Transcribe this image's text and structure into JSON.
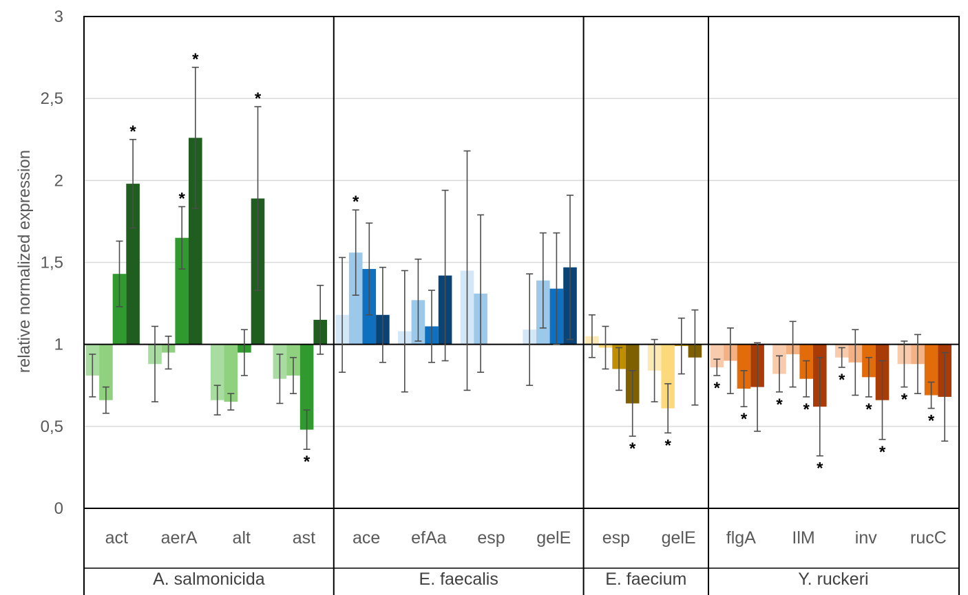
{
  "chart_data": {
    "type": "bar",
    "title": "",
    "ylabel": "relative normalized expression",
    "xlabel": "",
    "ylim": [
      0,
      3
    ],
    "yticks": [
      {
        "v": 0,
        "label": "0"
      },
      {
        "v": 0.5,
        "label": "0,5"
      },
      {
        "v": 1,
        "label": "1"
      },
      {
        "v": 1.5,
        "label": "1,5"
      },
      {
        "v": 2,
        "label": "2"
      },
      {
        "v": 2.5,
        "label": "2,5"
      },
      {
        "v": 3,
        "label": "3"
      }
    ],
    "baseline": 1,
    "grid": true,
    "groups": [
      {
        "name": "A. salmonicida",
        "colors": [
          "#a9dca0",
          "#8fd17f",
          "#309a2e",
          "#1f5e1f"
        ],
        "genes": [
          {
            "name": "act",
            "bars": [
              {
                "value": 0.81,
                "err": 0.13,
                "star": false
              },
              {
                "value": 0.66,
                "err": 0.08,
                "star": false
              },
              {
                "value": 1.43,
                "err": 0.2,
                "star": false
              },
              {
                "value": 1.98,
                "err": 0.27,
                "star": true
              }
            ]
          },
          {
            "name": "aerA",
            "bars": [
              {
                "value": 0.88,
                "err": 0.23,
                "star": false
              },
              {
                "value": 0.95,
                "err": 0.1,
                "star": false
              },
              {
                "value": 1.65,
                "err": 0.19,
                "star": true
              },
              {
                "value": 2.26,
                "err": 0.43,
                "star": true
              }
            ]
          },
          {
            "name": "alt",
            "bars": [
              {
                "value": 0.66,
                "err": 0.09,
                "star": false
              },
              {
                "value": 0.65,
                "err": 0.05,
                "star": false
              },
              {
                "value": 0.95,
                "err": 0.14,
                "star": false
              },
              {
                "value": 1.89,
                "err": 0.56,
                "star": true
              }
            ]
          },
          {
            "name": "ast",
            "bars": [
              {
                "value": 0.79,
                "err": 0.15,
                "star": false
              },
              {
                "value": 0.81,
                "err": 0.11,
                "star": false
              },
              {
                "value": 0.48,
                "err": 0.12,
                "star": true
              },
              {
                "value": 1.15,
                "err": 0.21,
                "star": false
              }
            ]
          }
        ]
      },
      {
        "name": "E. faecalis",
        "colors": [
          "#d3e7f7",
          "#9cc8ea",
          "#0f70bf",
          "#0a4477"
        ],
        "genes": [
          {
            "name": "ace",
            "bars": [
              {
                "value": 1.18,
                "err": 0.35,
                "star": false
              },
              {
                "value": 1.56,
                "err": 0.26,
                "star": true
              },
              {
                "value": 1.46,
                "err": 0.28,
                "star": false
              },
              {
                "value": 1.18,
                "err": 0.29,
                "star": false
              }
            ]
          },
          {
            "name": "efAa",
            "bars": [
              {
                "value": 1.08,
                "err": 0.37,
                "star": false
              },
              {
                "value": 1.27,
                "err": 0.25,
                "star": false
              },
              {
                "value": 1.11,
                "err": 0.22,
                "star": false
              },
              {
                "value": 1.42,
                "err": 0.52,
                "star": false
              }
            ]
          },
          {
            "name": "esp",
            "bars": [
              {
                "value": 1.45,
                "err": 0.73,
                "star": false
              },
              {
                "value": 1.31,
                "err": 0.48,
                "star": false
              },
              {
                "value": 1.0,
                "err": 0,
                "star": false
              },
              {
                "value": 1.0,
                "err": 0,
                "star": false
              }
            ]
          },
          {
            "name": "gelE",
            "bars": [
              {
                "value": 1.09,
                "err": 0.34,
                "star": false
              },
              {
                "value": 1.39,
                "err": 0.29,
                "star": false
              },
              {
                "value": 1.34,
                "err": 0.34,
                "star": false
              },
              {
                "value": 1.47,
                "err": 0.44,
                "star": false
              }
            ]
          }
        ]
      },
      {
        "name": "E. faecium",
        "colors": [
          "#fde9b5",
          "#fcd97a",
          "#bf8f00",
          "#7f6000"
        ],
        "genes": [
          {
            "name": "esp",
            "bars": [
              {
                "value": 1.05,
                "err": 0.13,
                "star": false
              },
              {
                "value": 0.98,
                "err": 0.13,
                "star": false
              },
              {
                "value": 0.85,
                "err": 0.13,
                "star": false
              },
              {
                "value": 0.64,
                "err": 0.2,
                "star": true
              }
            ]
          },
          {
            "name": "gelE",
            "bars": [
              {
                "value": 0.84,
                "err": 0.19,
                "star": false
              },
              {
                "value": 0.61,
                "err": 0.15,
                "star": true
              },
              {
                "value": 0.99,
                "err": 0.17,
                "star": false
              },
              {
                "value": 0.92,
                "err": 0.29,
                "star": false
              }
            ]
          }
        ]
      },
      {
        "name": "Y. ruckeri",
        "colors": [
          "#f8cbad",
          "#f4b183",
          "#e26b0a",
          "#a93b06"
        ],
        "genes": [
          {
            "name": "flgA",
            "bars": [
              {
                "value": 0.86,
                "err": 0.05,
                "star": true
              },
              {
                "value": 0.9,
                "err": 0.2,
                "star": false
              },
              {
                "value": 0.73,
                "err": 0.11,
                "star": true
              },
              {
                "value": 0.74,
                "err": 0.27,
                "star": false
              }
            ]
          },
          {
            "name": "IlM",
            "bars": [
              {
                "value": 0.82,
                "err": 0.11,
                "star": true
              },
              {
                "value": 0.94,
                "err": 0.2,
                "star": false
              },
              {
                "value": 0.79,
                "err": 0.11,
                "star": true
              },
              {
                "value": 0.62,
                "err": 0.3,
                "star": true
              }
            ]
          },
          {
            "name": "inv",
            "bars": [
              {
                "value": 0.92,
                "err": 0.06,
                "star": true
              },
              {
                "value": 0.89,
                "err": 0.2,
                "star": false
              },
              {
                "value": 0.8,
                "err": 0.12,
                "star": true
              },
              {
                "value": 0.66,
                "err": 0.24,
                "star": true
              }
            ]
          },
          {
            "name": "rucC",
            "bars": [
              {
                "value": 0.88,
                "err": 0.14,
                "star": true
              },
              {
                "value": 0.88,
                "err": 0.18,
                "star": false
              },
              {
                "value": 0.69,
                "err": 0.08,
                "star": true
              },
              {
                "value": 0.68,
                "err": 0.27,
                "star": false
              }
            ]
          }
        ]
      }
    ]
  }
}
